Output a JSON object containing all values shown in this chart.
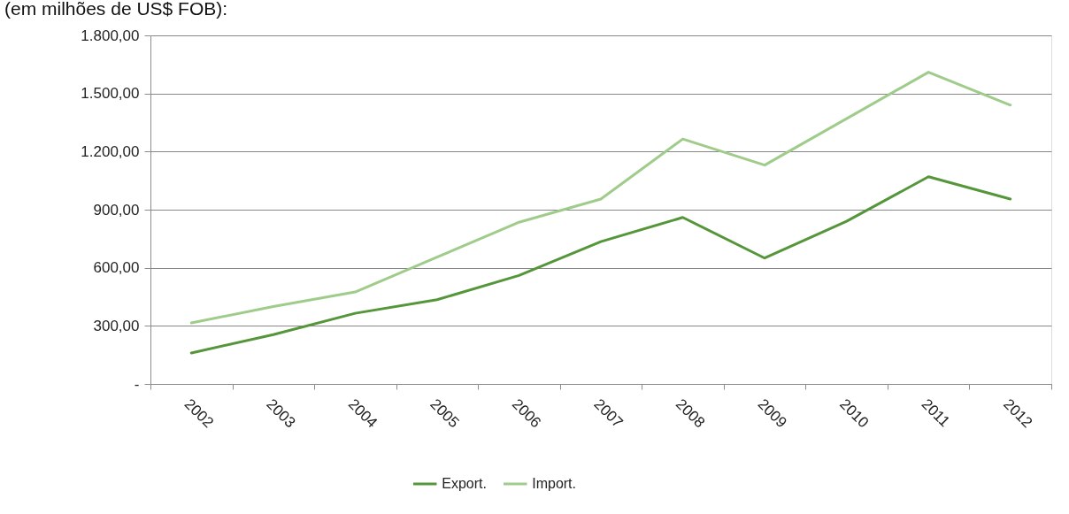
{
  "chart_data": {
    "type": "line",
    "title": "(em milhões de US$ FOB):",
    "categories": [
      "2002",
      "2003",
      "2004",
      "2005",
      "2006",
      "2007",
      "2008",
      "2009",
      "2010",
      "2011",
      "2012"
    ],
    "series": [
      {
        "name": "Export.",
        "color": "#55963a",
        "values": [
          160,
          255,
          365,
          435,
          560,
          735,
          860,
          650,
          840,
          1070,
          955
        ]
      },
      {
        "name": "Import.",
        "color": "#a0cc8b",
        "values": [
          315,
          400,
          475,
          655,
          835,
          955,
          1265,
          1130,
          1370,
          1610,
          1440
        ]
      }
    ],
    "ylim": [
      0,
      1800
    ],
    "yticks": [
      {
        "value": 0,
        "label": "-"
      },
      {
        "value": 300,
        "label": "300,00"
      },
      {
        "value": 600,
        "label": "600,00"
      },
      {
        "value": 900,
        "label": "900,00"
      },
      {
        "value": 1200,
        "label": "1.200,00"
      },
      {
        "value": 1500,
        "label": "1.500,00"
      },
      {
        "value": 1800,
        "label": "1.800,00"
      }
    ],
    "grid": "y",
    "legend": "bottom",
    "line_style": "solid"
  }
}
